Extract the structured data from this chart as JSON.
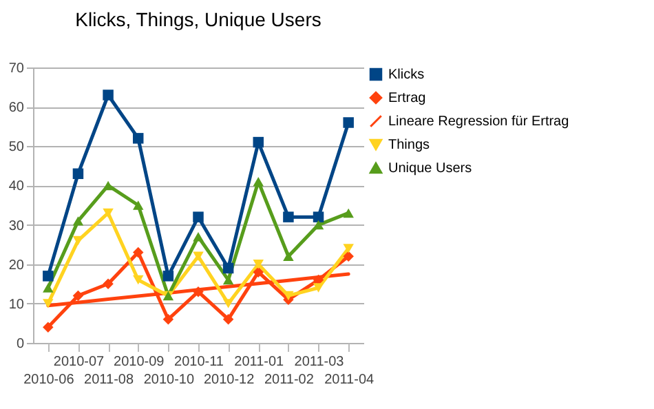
{
  "chart_data": {
    "type": "line",
    "title": "Klicks, Things, Unique Users",
    "categories": [
      "2010-06",
      "2010-07",
      "2011-08",
      "2010-09",
      "2010-10",
      "2010-11",
      "2010-12",
      "2011-01",
      "2011-02",
      "2011-03",
      "2011-04"
    ],
    "ylim": [
      0,
      70
    ],
    "yticks": [
      0,
      10,
      20,
      30,
      40,
      50,
      60,
      70
    ],
    "grid": "y",
    "legend": "right",
    "series": [
      {
        "name": "Klicks",
        "color": "#004586",
        "marker": "square",
        "values": [
          17,
          43,
          63,
          52,
          17,
          32,
          19,
          51,
          32,
          32,
          56
        ]
      },
      {
        "name": "Ertrag",
        "color": "#ff420e",
        "marker": "diamond",
        "values": [
          4,
          12,
          15,
          23,
          6,
          13,
          6,
          18,
          11,
          16,
          22
        ]
      },
      {
        "name": "Lineare Regression für Ertrag",
        "color": "#ff420e",
        "marker": "none",
        "values": [
          9.5,
          10.3,
          11.1,
          11.9,
          12.7,
          13.5,
          14.3,
          15.1,
          15.9,
          16.7,
          17.5
        ]
      },
      {
        "name": "Things",
        "color": "#ffd320",
        "marker": "triangle-down",
        "values": [
          10,
          26,
          33,
          16,
          12,
          22,
          10,
          20,
          12,
          14,
          24
        ]
      },
      {
        "name": "Unique Users",
        "color": "#579d1c",
        "marker": "triangle-up",
        "values": [
          14,
          31,
          40,
          35,
          12,
          27,
          16,
          41,
          22,
          30,
          33
        ]
      }
    ]
  }
}
